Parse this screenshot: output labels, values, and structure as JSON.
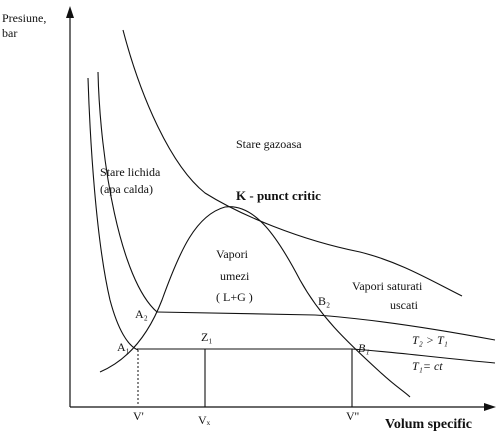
{
  "diagram": {
    "axes": {
      "ylabel_line1": "Presiune,",
      "ylabel_line2": "bar",
      "xlabel": "Volum specific"
    },
    "regions": {
      "gas": "Stare gazoasa",
      "liquid_line1": "Stare lichida",
      "liquid_line2": "(apa calda)",
      "critical_point": "K - punct critic",
      "wet_vapor_line1": "Vapori",
      "wet_vapor_line2": "umezi",
      "wet_vapor_line3": "( L+G )",
      "saturated_line1": "Vapori saturati",
      "saturated_line2": "uscati"
    },
    "points": {
      "a2": "A₂",
      "b2": "B₂",
      "a1": "A₁",
      "b1": "B₁",
      "z1": "Z₁"
    },
    "isotherms": {
      "t2": "T₂ > T₁",
      "t1": "T₁= ct"
    },
    "xticks": {
      "v_prime": "V'",
      "vx": "Vₓ",
      "v_double_prime": "V''"
    }
  }
}
